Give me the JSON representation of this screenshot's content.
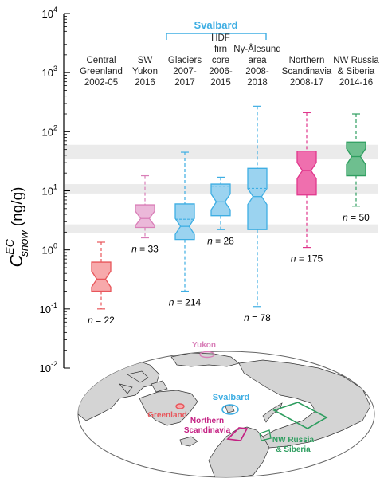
{
  "chart_data": {
    "type": "box",
    "y_scale": "log",
    "ylim": [
      0.01,
      10000
    ],
    "y_ticks": [
      {
        "value": 0.01,
        "base": "10",
        "exp": "-2"
      },
      {
        "value": 0.1,
        "base": "10",
        "exp": "-1"
      },
      {
        "value": 1,
        "base": "10",
        "exp": "0"
      },
      {
        "value": 10,
        "base": "10",
        "exp": "1"
      },
      {
        "value": 100,
        "base": "10",
        "exp": "2"
      },
      {
        "value": 1000,
        "base": "10",
        "exp": "3"
      },
      {
        "value": 10000,
        "base": "10",
        "exp": "4"
      }
    ],
    "ylabel": {
      "main": "C",
      "sup": "EC",
      "sub": "snow",
      "unit": " (ng/g)"
    },
    "group_label": "Svalbard",
    "grey_bands": [
      [
        1.9,
        2.7
      ],
      [
        9.0,
        13.0
      ],
      [
        34,
        60
      ]
    ],
    "boxes": [
      {
        "label_lines": [
          "Central",
          "Greenland",
          "2002-05"
        ],
        "color": "#e8565b",
        "fill": "#f7a9ab",
        "whisker_low": 0.1,
        "q1": 0.2,
        "median": 0.32,
        "q3": 0.62,
        "whisker_high": 1.35,
        "n": "22",
        "mean": null
      },
      {
        "label_lines": [
          "SW",
          "Yukon",
          "2016"
        ],
        "color": "#d97fb8",
        "fill": "#ebb8d9",
        "whisker_low": 1.6,
        "q1": 2.4,
        "median": 3.4,
        "q3": 5.8,
        "whisker_high": 18,
        "n": "33",
        "mean": null
      },
      {
        "label_lines": [
          "Glaciers",
          "2007-",
          "2017"
        ],
        "color": "#3eaee3",
        "fill": "#9bd3f0",
        "whisker_low": 0.2,
        "q1": 1.5,
        "median": 2.5,
        "q3": 6.0,
        "whisker_high": 45,
        "n": "214",
        "mean": 3.3
      },
      {
        "label_lines": [
          "HDF",
          "firn",
          "core",
          "2006-",
          "2015"
        ],
        "color": "#3eaee3",
        "fill": "#9bd3f0",
        "whisker_low": 2.2,
        "q1": 3.8,
        "median": 6.5,
        "q3": 13,
        "whisker_high": 17,
        "n": "28",
        "mean": 12
      },
      {
        "label_lines": [
          "Ny-Ålesund",
          "area",
          "2008-",
          "2018"
        ],
        "color": "#3eaee3",
        "fill": "#9bd3f0",
        "whisker_low": 0.11,
        "q1": 2.2,
        "median": 8.0,
        "q3": 24,
        "whisker_high": 270,
        "n": "78",
        "mean": 11
      },
      {
        "label_lines": [
          "Northern",
          "Scandinavia",
          "2008-17"
        ],
        "color": "#e0368c",
        "fill": "#ef6fae",
        "whisker_low": 1.1,
        "q1": 8.5,
        "median": 22,
        "q3": 47,
        "whisker_high": 210,
        "n": "175",
        "mean": null
      },
      {
        "label_lines": [
          "NW Russia",
          "& Siberia",
          "2014-16"
        ],
        "color": "#2f9e60",
        "fill": "#6ebf8f",
        "whisker_low": 5.5,
        "q1": 18,
        "median": 38,
        "q3": 67,
        "whisker_high": 200,
        "n": "50",
        "mean": null
      }
    ]
  },
  "map": {
    "labels": {
      "yukon": "Yukon",
      "svalbard": "Svalbard",
      "greenland": "Greenland",
      "scandinavia_1": "Northern",
      "scandinavia_2": "Scandinavia",
      "russia_1": "NW Russia",
      "russia_2": "& Siberia"
    },
    "colors": {
      "yukon": "#d97fb8",
      "svalbard": "#3eaee3",
      "greenland": "#e8565b",
      "scandinavia": "#c41f82",
      "russia": "#2f9e60",
      "land": "#d4d4d4",
      "coast": "#333333"
    }
  }
}
